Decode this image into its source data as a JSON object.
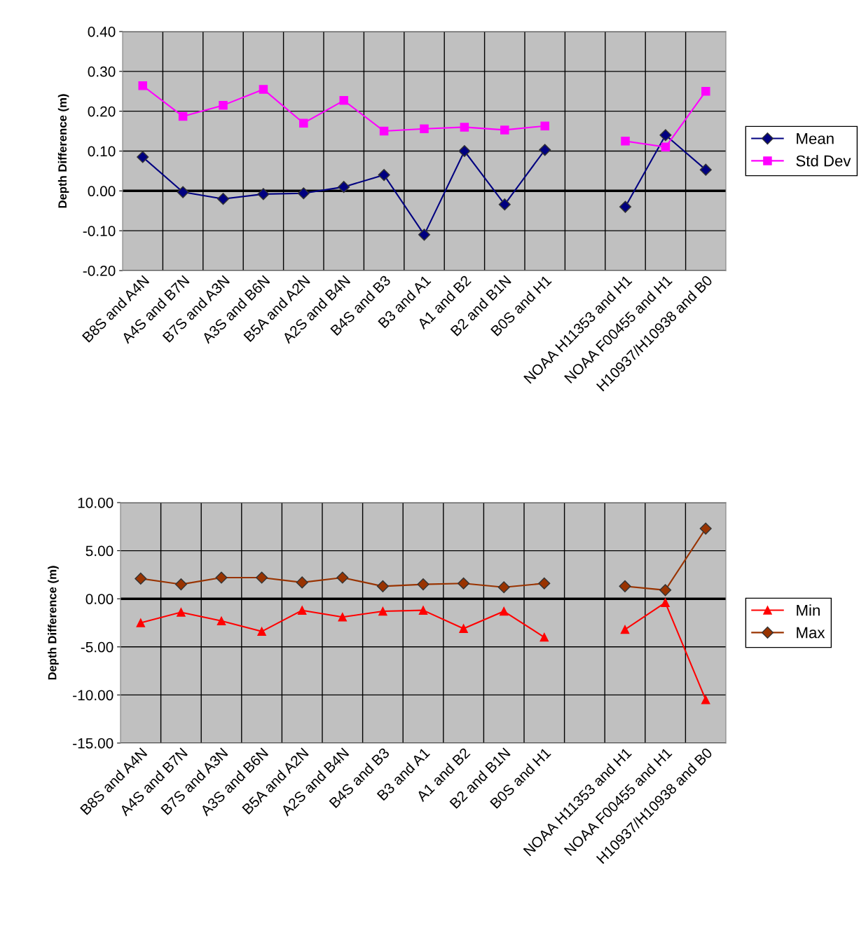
{
  "chart_data": [
    {
      "type": "line",
      "ylabel": "Depth Difference (m)",
      "categories": [
        "B8S and A4N",
        "A4S and B7N",
        "B7S and A3N",
        "A3S and B6N",
        "B5A and A2N",
        "A2S and B4N",
        "B4S and B3",
        "B3 and A1",
        "A1 and B2",
        "B2 and B1N",
        "B0S and H1",
        null,
        "NOAA H11353 and H1",
        "NOAA F00455 and H1",
        "H10937/H10938 and B0"
      ],
      "series": [
        {
          "name": "Mean",
          "color": "#000080",
          "marker": "diamond",
          "values": [
            0.085,
            -0.003,
            -0.02,
            -0.008,
            -0.006,
            0.01,
            0.04,
            -0.11,
            0.1,
            -0.034,
            0.103,
            null,
            -0.04,
            0.14,
            0.053
          ]
        },
        {
          "name": "Std Dev",
          "color": "#ff00ff",
          "marker": "square",
          "values": [
            0.264,
            0.187,
            0.215,
            0.255,
            0.17,
            0.227,
            0.15,
            0.156,
            0.16,
            0.153,
            0.163,
            null,
            0.125,
            0.11,
            0.25
          ]
        }
      ],
      "ylim": [
        -0.2,
        0.4
      ],
      "yticks": [
        {
          "value": -0.2,
          "label": "-0.20"
        },
        {
          "value": -0.1,
          "label": "-0.10"
        },
        {
          "value": 0,
          "label": "0.00"
        },
        {
          "value": 0.1,
          "label": "0.10"
        },
        {
          "value": 0.2,
          "label": "0.20"
        },
        {
          "value": 0.3,
          "label": "0.30"
        },
        {
          "value": 0.4,
          "label": "0.40"
        }
      ],
      "ref_lines": [
        {
          "axis": "y",
          "value": 0,
          "color": "#000000"
        }
      ],
      "grid": true,
      "legend": "right"
    },
    {
      "type": "line",
      "ylabel": "Depth Difference (m)",
      "categories": [
        "B8S and A4N",
        "A4S and B7N",
        "B7S and A3N",
        "A3S and B6N",
        "B5A and A2N",
        "A2S and B4N",
        "B4S and B3",
        "B3 and A1",
        "A1 and B2",
        "B2 and B1N",
        "B0S and H1",
        null,
        "NOAA H11353 and H1",
        "NOAA F00455 and H1",
        "H10937/H10938 and B0"
      ],
      "series": [
        {
          "name": "Min",
          "color": "#ff0000",
          "marker": "triangle",
          "values": [
            -2.5,
            -1.4,
            -2.3,
            -3.4,
            -1.2,
            -1.9,
            -1.3,
            -1.2,
            -3.1,
            -1.3,
            -4.0,
            null,
            -3.2,
            -0.4,
            -10.5
          ]
        },
        {
          "name": "Max",
          "color": "#993300",
          "marker": "diamond",
          "values": [
            2.1,
            1.5,
            2.2,
            2.2,
            1.7,
            2.2,
            1.3,
            1.5,
            1.6,
            1.2,
            1.6,
            null,
            1.3,
            0.9,
            7.3
          ]
        }
      ],
      "ylim": [
        -15,
        10
      ],
      "yticks": [
        {
          "value": -15,
          "label": "-15.00"
        },
        {
          "value": -10,
          "label": "-10.00"
        },
        {
          "value": -5,
          "label": "-5.00"
        },
        {
          "value": 0,
          "label": "0.00"
        },
        {
          "value": 5,
          "label": "5.00"
        },
        {
          "value": 10,
          "label": "10.00"
        }
      ],
      "ref_lines": [
        {
          "axis": "y",
          "value": 0,
          "color": "#000000"
        }
      ],
      "grid": true,
      "legend": "right"
    }
  ]
}
